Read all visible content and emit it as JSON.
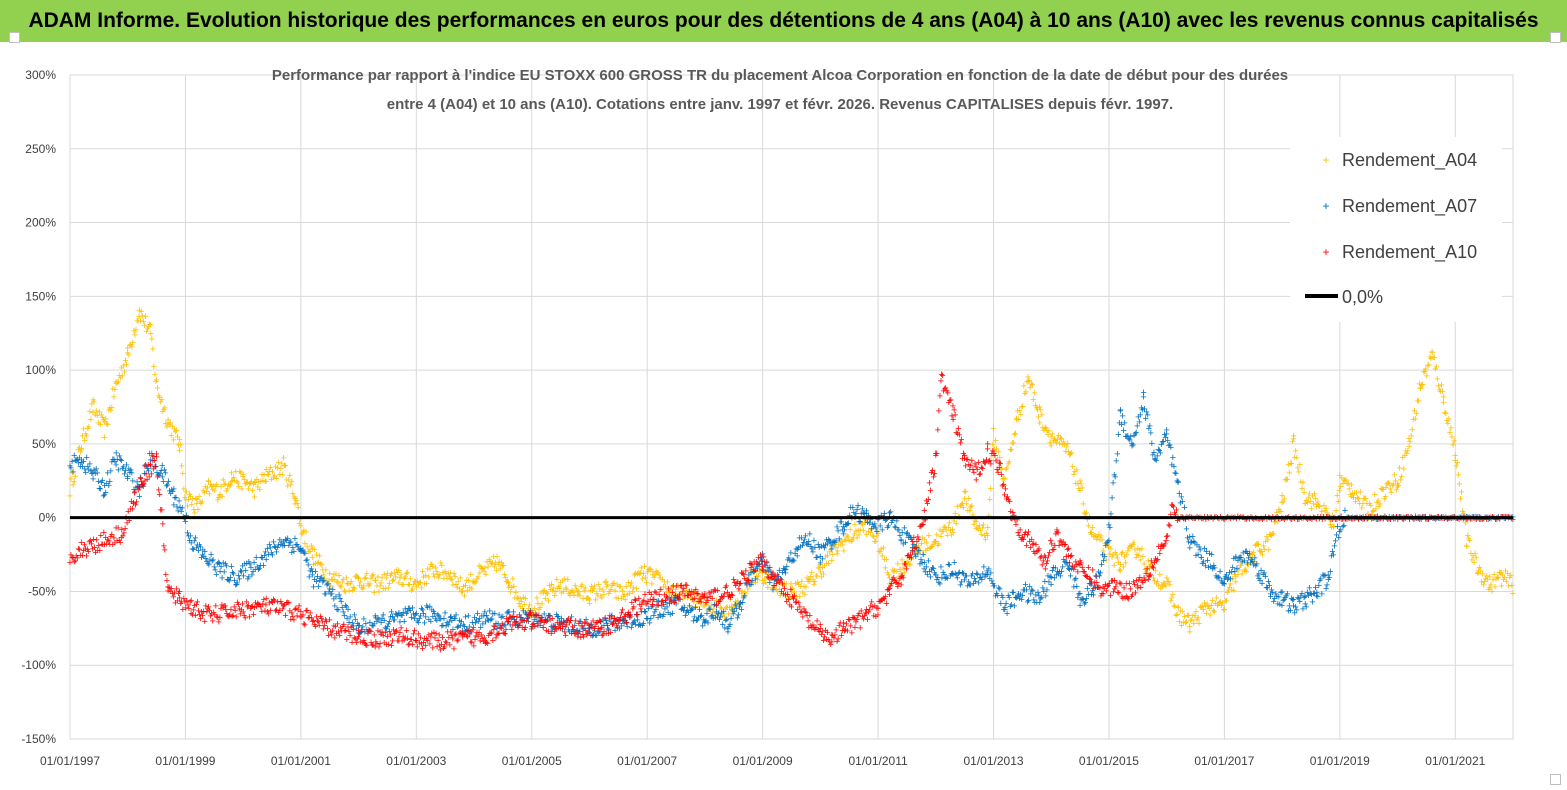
{
  "header": {
    "banner": "ADAM Informe. Evolution historique des performances en euros pour des détentions de 4 ans (A04) à 10 ans (A10) avec les revenus connus capitalisés"
  },
  "colors": {
    "banner_bg": "#92d050",
    "A04": "#ffc000",
    "A07": "#0070c0",
    "A10": "#ff0000",
    "zero": "#000000",
    "grid": "#d9d9d9"
  },
  "chart_data": {
    "type": "scatter",
    "title_line1": "Performance par rapport à l'indice EU STOXX 600 GROSS TR  du placement Alcoa Corporation en fonction de la date de début pour des durées",
    "title_line2": "entre 4 (A04) et 10 ans (A10).  Cotations entre janv. 1997 et févr. 2026. Revenus CAPITALISES depuis févr. 1997.",
    "x_unit": "year",
    "xlim": [
      1997.0,
      2022.0
    ],
    "ylim": [
      -150,
      300
    ],
    "y_ticks": [
      300,
      250,
      200,
      150,
      100,
      50,
      0,
      -50,
      -100,
      -150
    ],
    "y_tick_labels": [
      "300%",
      "250%",
      "200%",
      "150%",
      "100%",
      "50%",
      "0%",
      "-50%",
      "-100%",
      "-150%"
    ],
    "x_ticks": [
      1997,
      1999,
      2001,
      2003,
      2005,
      2007,
      2009,
      2011,
      2013,
      2015,
      2017,
      2019,
      2021
    ],
    "x_tick_labels": [
      "01/01/1997",
      "01/01/1999",
      "01/01/2001",
      "01/01/2003",
      "01/01/2005",
      "01/01/2007",
      "01/01/2009",
      "01/01/2011",
      "01/01/2013",
      "01/01/2015",
      "01/01/2017",
      "01/01/2019",
      "01/01/2021"
    ],
    "legend_position": "top-right",
    "series": [
      {
        "name": "Rendement_A04",
        "color": "#ffc000",
        "x_end": 2022.05,
        "points": [
          [
            1997.0,
            20
          ],
          [
            1997.2,
            50
          ],
          [
            1997.4,
            75
          ],
          [
            1997.6,
            60
          ],
          [
            1997.8,
            90
          ],
          [
            1998.0,
            110
          ],
          [
            1998.2,
            140
          ],
          [
            1998.4,
            125
          ],
          [
            1998.5,
            90
          ],
          [
            1998.7,
            65
          ],
          [
            1998.9,
            50
          ],
          [
            1999.0,
            15
          ],
          [
            1999.2,
            8
          ],
          [
            1999.4,
            20
          ],
          [
            1999.6,
            18
          ],
          [
            1999.8,
            28
          ],
          [
            2000.0,
            25
          ],
          [
            2000.2,
            20
          ],
          [
            2000.4,
            28
          ],
          [
            2000.7,
            35
          ],
          [
            2000.9,
            15
          ],
          [
            2001.0,
            -5
          ],
          [
            2001.2,
            -25
          ],
          [
            2001.5,
            -40
          ],
          [
            2001.8,
            -45
          ],
          [
            2002.0,
            -42
          ],
          [
            2002.3,
            -45
          ],
          [
            2002.7,
            -40
          ],
          [
            2003.0,
            -45
          ],
          [
            2003.3,
            -35
          ],
          [
            2003.6,
            -38
          ],
          [
            2003.8,
            -48
          ],
          [
            2004.1,
            -38
          ],
          [
            2004.4,
            -30
          ],
          [
            2004.6,
            -42
          ],
          [
            2004.8,
            -55
          ],
          [
            2005.0,
            -62
          ],
          [
            2005.2,
            -55
          ],
          [
            2005.5,
            -45
          ],
          [
            2005.8,
            -50
          ],
          [
            2006.0,
            -52
          ],
          [
            2006.3,
            -48
          ],
          [
            2006.6,
            -52
          ],
          [
            2006.9,
            -38
          ],
          [
            2007.1,
            -40
          ],
          [
            2007.4,
            -48
          ],
          [
            2007.7,
            -55
          ],
          [
            2008.0,
            -58
          ],
          [
            2008.3,
            -62
          ],
          [
            2008.6,
            -55
          ],
          [
            2008.8,
            -40
          ],
          [
            2009.0,
            -38
          ],
          [
            2009.2,
            -45
          ],
          [
            2009.5,
            -50
          ],
          [
            2009.8,
            -45
          ],
          [
            2010.0,
            -35
          ],
          [
            2010.3,
            -20
          ],
          [
            2010.6,
            -10
          ],
          [
            2010.8,
            -5
          ],
          [
            2011.0,
            -15
          ],
          [
            2011.2,
            -40
          ],
          [
            2011.5,
            -30
          ],
          [
            2011.7,
            -20
          ],
          [
            2012.0,
            -15
          ],
          [
            2012.3,
            -5
          ],
          [
            2012.5,
            15
          ],
          [
            2012.7,
            -5
          ],
          [
            2012.9,
            -10
          ],
          [
            2013.0,
            55
          ],
          [
            2013.2,
            25
          ],
          [
            2013.4,
            65
          ],
          [
            2013.6,
            95
          ],
          [
            2013.8,
            70
          ],
          [
            2014.0,
            55
          ],
          [
            2014.3,
            45
          ],
          [
            2014.5,
            20
          ],
          [
            2014.7,
            -10
          ],
          [
            2015.0,
            -25
          ],
          [
            2015.2,
            -30
          ],
          [
            2015.5,
            -20
          ],
          [
            2015.7,
            -35
          ],
          [
            2016.0,
            -45
          ],
          [
            2016.2,
            -65
          ],
          [
            2016.4,
            -72
          ],
          [
            2016.7,
            -60
          ],
          [
            2017.0,
            -60
          ],
          [
            2017.2,
            -40
          ],
          [
            2017.5,
            -25
          ],
          [
            2017.8,
            -15
          ],
          [
            2018.0,
            10
          ],
          [
            2018.2,
            50
          ],
          [
            2018.4,
            15
          ],
          [
            2018.6,
            10
          ],
          [
            2018.9,
            -5
          ],
          [
            2019.0,
            25
          ],
          [
            2019.2,
            20
          ],
          [
            2019.5,
            5
          ],
          [
            2019.8,
            20
          ],
          [
            2020.0,
            25
          ],
          [
            2020.2,
            50
          ],
          [
            2020.4,
            90
          ],
          [
            2020.6,
            110
          ],
          [
            2020.8,
            80
          ],
          [
            2021.0,
            45
          ],
          [
            2021.2,
            -15
          ],
          [
            2021.4,
            -35
          ],
          [
            2021.6,
            -45
          ],
          [
            2021.8,
            -40
          ],
          [
            2022.0,
            -45
          ]
        ],
        "zero_tail_from": null
      },
      {
        "name": "Rendement_A07",
        "color": "#0070c0",
        "points": [
          [
            1997.0,
            35
          ],
          [
            1997.2,
            40
          ],
          [
            1997.4,
            30
          ],
          [
            1997.6,
            20
          ],
          [
            1997.8,
            40
          ],
          [
            1998.0,
            30
          ],
          [
            1998.2,
            20
          ],
          [
            1998.4,
            40
          ],
          [
            1998.6,
            30
          ],
          [
            1998.8,
            15
          ],
          [
            1999.0,
            0
          ],
          [
            1999.1,
            -15
          ],
          [
            1999.3,
            -25
          ],
          [
            1999.6,
            -35
          ],
          [
            1999.9,
            -40
          ],
          [
            2000.1,
            -35
          ],
          [
            2000.4,
            -25
          ],
          [
            2000.7,
            -15
          ],
          [
            2001.0,
            -20
          ],
          [
            2001.2,
            -40
          ],
          [
            2001.5,
            -50
          ],
          [
            2001.8,
            -65
          ],
          [
            2002.0,
            -75
          ],
          [
            2002.3,
            -72
          ],
          [
            2002.7,
            -68
          ],
          [
            2003.0,
            -66
          ],
          [
            2003.3,
            -65
          ],
          [
            2003.6,
            -70
          ],
          [
            2003.9,
            -72
          ],
          [
            2004.2,
            -68
          ],
          [
            2004.5,
            -70
          ],
          [
            2004.8,
            -68
          ],
          [
            2005.0,
            -68
          ],
          [
            2005.3,
            -70
          ],
          [
            2005.6,
            -72
          ],
          [
            2006.0,
            -75
          ],
          [
            2006.3,
            -72
          ],
          [
            2006.6,
            -70
          ],
          [
            2006.9,
            -68
          ],
          [
            2007.2,
            -62
          ],
          [
            2007.5,
            -58
          ],
          [
            2007.8,
            -65
          ],
          [
            2008.0,
            -68
          ],
          [
            2008.2,
            -62
          ],
          [
            2008.4,
            -72
          ],
          [
            2008.6,
            -60
          ],
          [
            2008.8,
            -40
          ],
          [
            2009.0,
            -30
          ],
          [
            2009.2,
            -45
          ],
          [
            2009.4,
            -35
          ],
          [
            2009.6,
            -20
          ],
          [
            2009.8,
            -15
          ],
          [
            2010.0,
            -25
          ],
          [
            2010.2,
            -15
          ],
          [
            2010.4,
            -5
          ],
          [
            2010.6,
            5
          ],
          [
            2010.8,
            0
          ],
          [
            2011.0,
            -5
          ],
          [
            2011.2,
            0
          ],
          [
            2011.4,
            -10
          ],
          [
            2011.6,
            -20
          ],
          [
            2011.8,
            -30
          ],
          [
            2012.0,
            -40
          ],
          [
            2012.3,
            -35
          ],
          [
            2012.6,
            -45
          ],
          [
            2012.9,
            -35
          ],
          [
            2013.0,
            -45
          ],
          [
            2013.2,
            -60
          ],
          [
            2013.5,
            -50
          ],
          [
            2013.8,
            -55
          ],
          [
            2014.0,
            -40
          ],
          [
            2014.3,
            -30
          ],
          [
            2014.5,
            -55
          ],
          [
            2014.8,
            -45
          ],
          [
            2015.0,
            -10
          ],
          [
            2015.2,
            70
          ],
          [
            2015.4,
            50
          ],
          [
            2015.6,
            80
          ],
          [
            2015.8,
            40
          ],
          [
            2016.0,
            55
          ],
          [
            2016.2,
            20
          ],
          [
            2016.4,
            -15
          ],
          [
            2016.6,
            -25
          ],
          [
            2016.8,
            -30
          ],
          [
            2017.0,
            -45
          ],
          [
            2017.2,
            -30
          ],
          [
            2017.4,
            -25
          ],
          [
            2017.6,
            -35
          ],
          [
            2017.8,
            -50
          ],
          [
            2018.0,
            -55
          ],
          [
            2018.2,
            -60
          ],
          [
            2018.4,
            -55
          ],
          [
            2018.6,
            -50
          ],
          [
            2018.8,
            -40
          ],
          [
            2019.0,
            -5
          ],
          [
            2019.1,
            0
          ]
        ],
        "zero_tail_from": 2019.1
      },
      {
        "name": "Rendement_A10",
        "color": "#ff0000",
        "points": [
          [
            1997.0,
            -25
          ],
          [
            1997.3,
            -20
          ],
          [
            1997.6,
            -15
          ],
          [
            1997.9,
            -10
          ],
          [
            1998.1,
            10
          ],
          [
            1998.3,
            30
          ],
          [
            1998.5,
            40
          ],
          [
            1998.7,
            -50
          ],
          [
            1998.9,
            -55
          ],
          [
            1999.1,
            -60
          ],
          [
            1999.4,
            -66
          ],
          [
            1999.7,
            -64
          ],
          [
            2000.0,
            -62
          ],
          [
            2000.4,
            -60
          ],
          [
            2000.7,
            -62
          ],
          [
            2001.0,
            -65
          ],
          [
            2001.3,
            -72
          ],
          [
            2001.6,
            -76
          ],
          [
            2002.0,
            -80
          ],
          [
            2002.3,
            -82
          ],
          [
            2002.7,
            -80
          ],
          [
            2003.0,
            -82
          ],
          [
            2003.4,
            -84
          ],
          [
            2003.8,
            -82
          ],
          [
            2004.2,
            -80
          ],
          [
            2004.6,
            -72
          ],
          [
            2005.0,
            -70
          ],
          [
            2005.3,
            -72
          ],
          [
            2005.6,
            -74
          ],
          [
            2005.9,
            -76
          ],
          [
            2006.2,
            -74
          ],
          [
            2006.5,
            -70
          ],
          [
            2006.8,
            -60
          ],
          [
            2007.1,
            -55
          ],
          [
            2007.4,
            -52
          ],
          [
            2007.7,
            -50
          ],
          [
            2008.0,
            -55
          ],
          [
            2008.3,
            -52
          ],
          [
            2008.6,
            -45
          ],
          [
            2008.8,
            -35
          ],
          [
            2009.0,
            -30
          ],
          [
            2009.2,
            -40
          ],
          [
            2009.5,
            -55
          ],
          [
            2009.8,
            -70
          ],
          [
            2010.0,
            -78
          ],
          [
            2010.2,
            -82
          ],
          [
            2010.4,
            -75
          ],
          [
            2010.6,
            -72
          ],
          [
            2010.8,
            -65
          ],
          [
            2011.0,
            -60
          ],
          [
            2011.2,
            -50
          ],
          [
            2011.4,
            -40
          ],
          [
            2011.6,
            -20
          ],
          [
            2011.8,
            0
          ],
          [
            2012.0,
            40
          ],
          [
            2012.1,
            95
          ],
          [
            2012.3,
            70
          ],
          [
            2012.5,
            40
          ],
          [
            2012.7,
            30
          ],
          [
            2012.9,
            45
          ],
          [
            2013.1,
            35
          ],
          [
            2013.3,
            5
          ],
          [
            2013.5,
            -10
          ],
          [
            2013.7,
            -20
          ],
          [
            2013.9,
            -30
          ],
          [
            2014.1,
            -10
          ],
          [
            2014.3,
            -25
          ],
          [
            2014.5,
            -35
          ],
          [
            2014.7,
            -40
          ],
          [
            2014.9,
            -50
          ],
          [
            2015.1,
            -45
          ],
          [
            2015.3,
            -50
          ],
          [
            2015.5,
            -45
          ],
          [
            2015.7,
            -35
          ],
          [
            2015.9,
            -20
          ],
          [
            2016.0,
            -15
          ],
          [
            2016.1,
            5
          ],
          [
            2016.2,
            0
          ]
        ],
        "zero_tail_from": 2016.2
      }
    ],
    "reference_line": {
      "name": "0,0%",
      "y": 0
    }
  }
}
